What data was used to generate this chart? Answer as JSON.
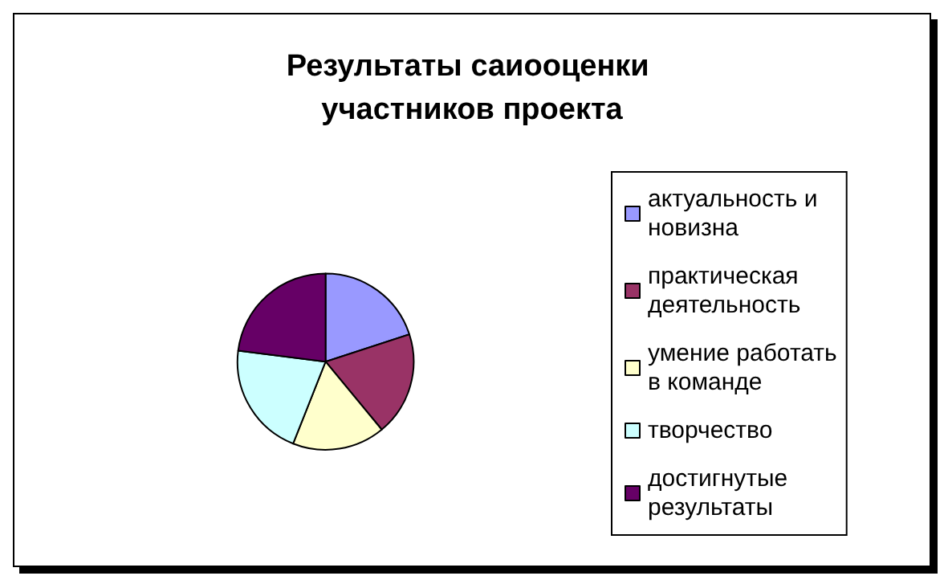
{
  "chart_data": {
    "type": "pie",
    "title": "Результаты саиооценки участников проекта",
    "categories": [
      "актуальность и новизна",
      "практическая деятельность",
      "умение работать в команде",
      "творчество",
      "достигнутые результаты"
    ],
    "values": [
      20,
      19,
      17,
      21,
      23
    ],
    "colors": [
      "#9999ff",
      "#993366",
      "#ffffcc",
      "#ccffff",
      "#660066"
    ],
    "legend": "right"
  }
}
